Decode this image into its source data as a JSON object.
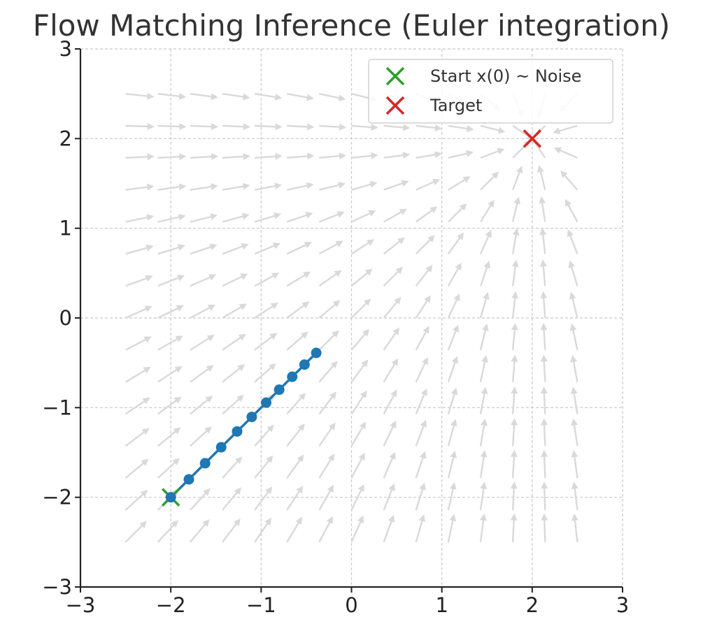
{
  "chart_data": {
    "type": "line",
    "title": "Flow Matching Inference (Euler integration)",
    "xlabel": "",
    "ylabel": "",
    "xlim": [
      -3,
      3
    ],
    "ylim": [
      -3,
      3
    ],
    "xticks": [
      {
        "value": -3,
        "label": "−3"
      },
      {
        "value": -2,
        "label": "−2"
      },
      {
        "value": -1,
        "label": "−1"
      },
      {
        "value": 0,
        "label": "0"
      },
      {
        "value": 1,
        "label": "1"
      },
      {
        "value": 2,
        "label": "2"
      },
      {
        "value": 3,
        "label": "3"
      }
    ],
    "yticks": [
      {
        "value": -3,
        "label": "−3"
      },
      {
        "value": -2,
        "label": "−2"
      },
      {
        "value": -1,
        "label": "−1"
      },
      {
        "value": 0,
        "label": "0"
      },
      {
        "value": 1,
        "label": "1"
      },
      {
        "value": 2,
        "label": "2"
      },
      {
        "value": 3,
        "label": "3"
      }
    ],
    "grid": true,
    "legend_position": "top-right",
    "series": [
      {
        "name": "",
        "kind": "line-markers",
        "color": "#1f77b4",
        "x": [
          -2.0,
          -1.8,
          -1.62,
          -1.442,
          -1.266,
          -1.104,
          -0.944,
          -0.8,
          -0.656,
          -0.52,
          -0.39
        ],
        "y": [
          -2.0,
          -1.8,
          -1.62,
          -1.442,
          -1.266,
          -1.104,
          -0.944,
          -0.8,
          -0.656,
          -0.52,
          -0.39
        ]
      }
    ],
    "markers": [
      {
        "name": "Start x(0) ~ Noise",
        "symbol": "x",
        "color": "#2ca02c",
        "x": -2,
        "y": -2
      },
      {
        "name": "Target",
        "symbol": "x",
        "color": "#d62728",
        "x": 2,
        "y": 2
      }
    ],
    "vector_field": {
      "color": "#d9d9d9",
      "target": [
        2,
        2
      ],
      "x_range": [
        -2.5,
        2.5
      ],
      "y_range": [
        -2.5,
        2.5
      ],
      "count": 15
    }
  }
}
